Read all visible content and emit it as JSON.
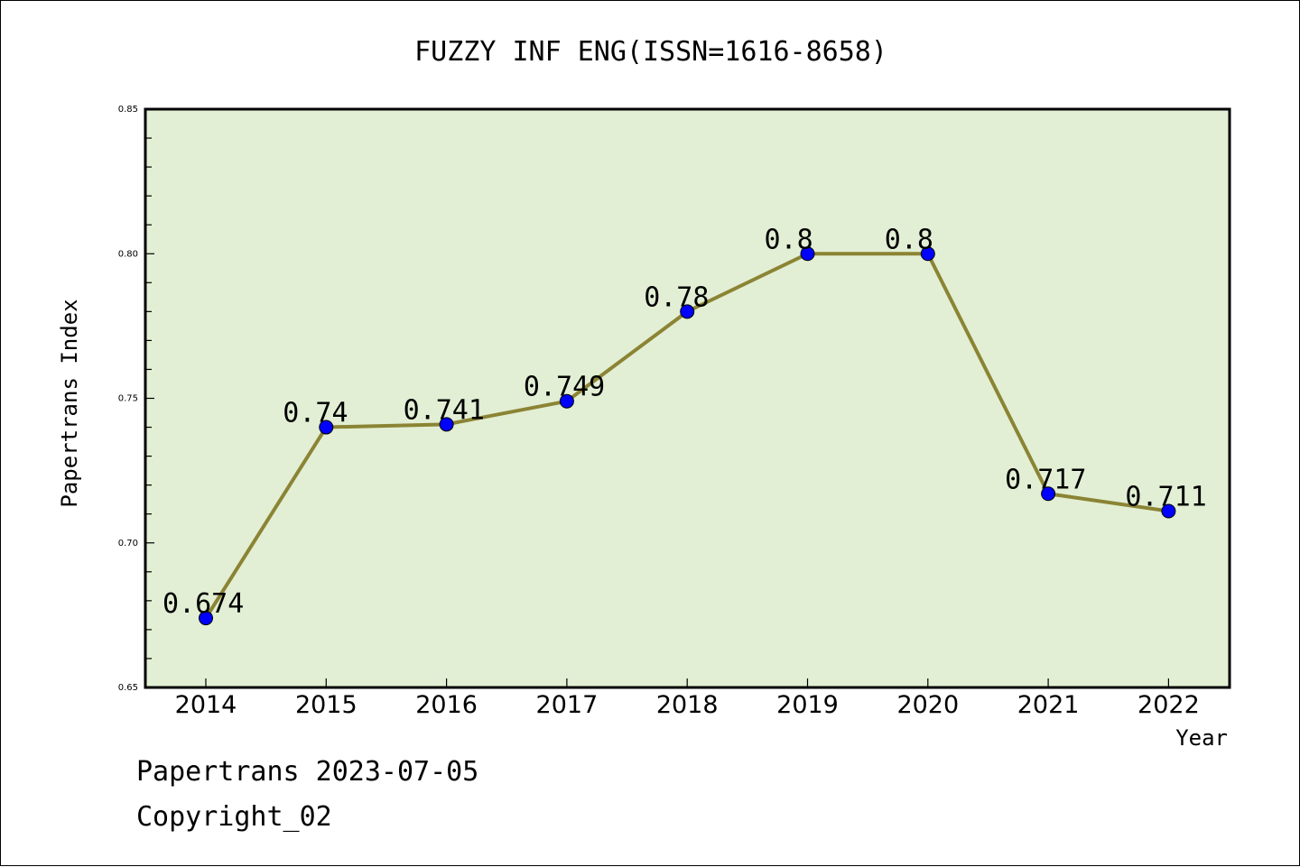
{
  "chart_data": {
    "type": "line",
    "title": "FUZZY INF ENG(ISSN=1616-8658)",
    "xlabel": "Year",
    "ylabel": "Papertrans Index",
    "categories": [
      "2014",
      "2015",
      "2016",
      "2017",
      "2018",
      "2019",
      "2020",
      "2021",
      "2022"
    ],
    "values": [
      0.674,
      0.74,
      0.741,
      0.749,
      0.78,
      0.8,
      0.8,
      0.717,
      0.711
    ],
    "data_labels": [
      "0.674",
      "0.74",
      "0.741",
      "0.749",
      "0.78",
      "0.8",
      "0.8",
      "0.717",
      "0.711"
    ],
    "ylim": [
      0.65,
      0.85
    ],
    "yticks": [
      "0.65",
      "0.70",
      "0.75",
      "0.80",
      "0.85"
    ],
    "grid": false,
    "colors": {
      "plot_background": "#e2efd4",
      "line": "#8b8434",
      "marker": "#0000ff"
    }
  },
  "footer": {
    "date_line": "Papertrans 2023-07-05",
    "copyright": "Copyright_02"
  }
}
